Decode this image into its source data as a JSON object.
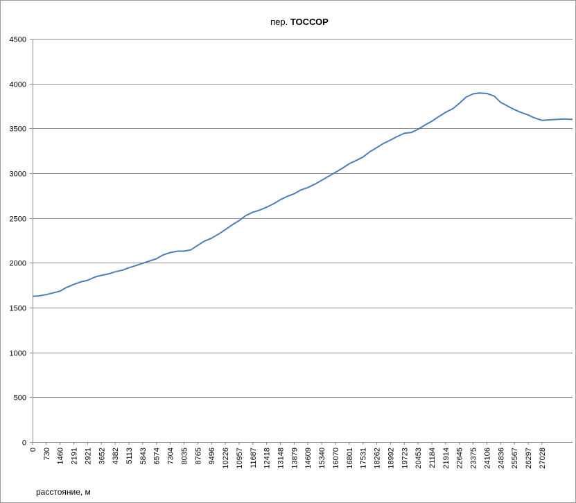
{
  "chart_data": {
    "type": "line",
    "title_prefix": "пер.",
    "title_name": "ТОССОР",
    "xlabel": "расстояние, м",
    "ylabel": "",
    "ylim": [
      0,
      4500
    ],
    "y_ticks": [
      0,
      500,
      1000,
      1500,
      2000,
      2500,
      3000,
      3500,
      4000,
      4500
    ],
    "x_ticks": [
      "0",
      "730",
      "1460",
      "2191",
      "2921",
      "3652",
      "4382",
      "5113",
      "5843",
      "6574",
      "7304",
      "8035",
      "8765",
      "9496",
      "10226",
      "10957",
      "11687",
      "12418",
      "13148",
      "13879",
      "14609",
      "15340",
      "16070",
      "16801",
      "17531",
      "18262",
      "18992",
      "19723",
      "20453",
      "21184",
      "21914",
      "22645",
      "23375",
      "24106",
      "24836",
      "25567",
      "26297",
      "27028"
    ],
    "xlim": [
      0,
      28650
    ],
    "grid": "horizontal",
    "legend": "none",
    "line_color": "#4a7ebb",
    "series": [
      {
        "x": [
          0,
          300,
          730,
          1100,
          1460,
          1800,
          2191,
          2600,
          2921,
          3300,
          3652,
          4000,
          4382,
          4800,
          5113,
          5500,
          5843,
          6200,
          6574,
          6900,
          7304,
          7700,
          8035,
          8400,
          8765,
          9100,
          9496,
          9900,
          10226,
          10600,
          10957,
          11300,
          11687,
          12000,
          12418,
          12800,
          13148,
          13500,
          13879,
          14200,
          14609,
          15000,
          15340,
          15700,
          16070,
          16400,
          16801,
          17200,
          17531,
          17900,
          18262,
          18600,
          18992,
          19300,
          19723,
          20100,
          20453,
          20800,
          21184,
          21500,
          21914,
          22300,
          22645,
          23000,
          23375,
          23700,
          24106,
          24500,
          24836,
          25200,
          25567,
          25900,
          26297,
          26600,
          27028,
          27400,
          27800,
          28200,
          28650
        ],
        "values": [
          1625,
          1630,
          1645,
          1665,
          1685,
          1725,
          1760,
          1790,
          1805,
          1840,
          1860,
          1875,
          1900,
          1920,
          1945,
          1970,
          1995,
          2020,
          2045,
          2085,
          2115,
          2130,
          2130,
          2145,
          2195,
          2240,
          2275,
          2325,
          2370,
          2425,
          2470,
          2525,
          2565,
          2585,
          2620,
          2660,
          2705,
          2740,
          2770,
          2810,
          2840,
          2880,
          2920,
          2965,
          3010,
          3050,
          3105,
          3145,
          3180,
          3240,
          3285,
          3330,
          3370,
          3405,
          3445,
          3455,
          3490,
          3535,
          3580,
          3625,
          3680,
          3720,
          3780,
          3850,
          3885,
          3895,
          3890,
          3860,
          3790,
          3750,
          3710,
          3680,
          3650,
          3620,
          3590,
          3595,
          3600,
          3605,
          3600
        ]
      }
    ]
  }
}
